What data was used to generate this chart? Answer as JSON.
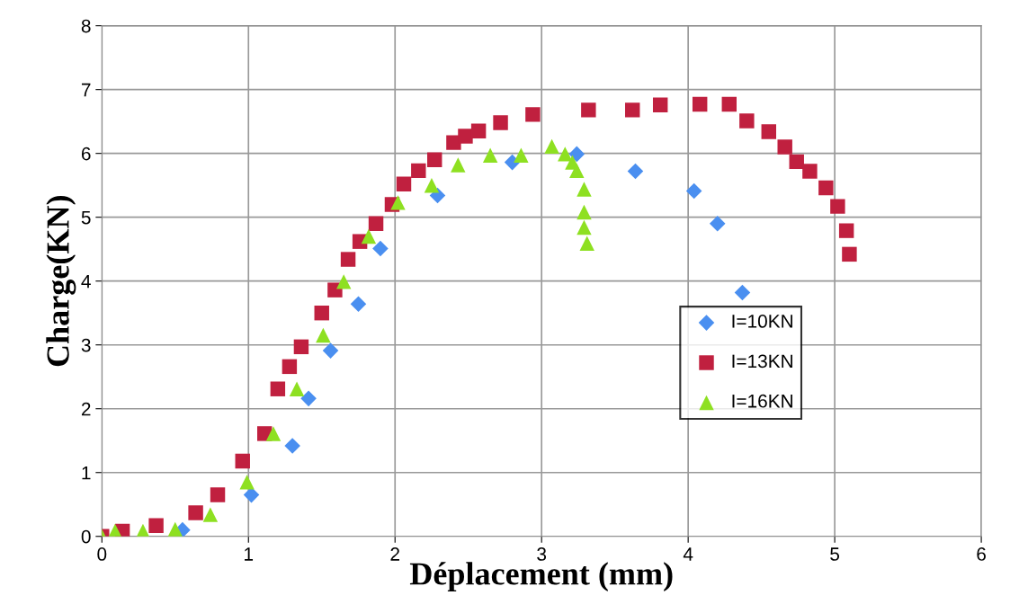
{
  "chart_data": {
    "type": "scatter",
    "xlabel": "Déplacement (mm)",
    "ylabel": "Charge(KN)",
    "xlim": [
      0,
      6
    ],
    "ylim": [
      0,
      8
    ],
    "xticks": [
      0,
      1,
      2,
      3,
      4,
      5,
      6
    ],
    "yticks": [
      0,
      1,
      2,
      3,
      4,
      5,
      6,
      7,
      8
    ],
    "grid": true,
    "legend": "right",
    "series": [
      {
        "name": "I=10KN",
        "color": "#4a8ff0",
        "marker": "diamond",
        "x": [
          0.55,
          1.02,
          1.3,
          1.41,
          1.56,
          1.75,
          1.9,
          2.29,
          2.8,
          3.24,
          3.64,
          4.04,
          4.2,
          4.37
        ],
        "values": [
          0.1,
          0.65,
          1.42,
          2.16,
          2.91,
          3.64,
          4.51,
          5.34,
          5.86,
          5.99,
          5.72,
          5.41,
          4.9,
          3.82
        ]
      },
      {
        "name": "I=13KN",
        "color": "#c0203f",
        "marker": "square",
        "x": [
          0,
          0.14,
          0.37,
          0.64,
          0.79,
          0.96,
          1.11,
          1.2,
          1.28,
          1.36,
          1.5,
          1.59,
          1.68,
          1.76,
          1.87,
          1.98,
          2.06,
          2.16,
          2.27,
          2.4,
          2.48,
          2.57,
          2.72,
          2.94,
          3.32,
          3.62,
          3.81,
          4.08,
          4.28,
          4.4,
          4.55,
          4.66,
          4.74,
          4.83,
          4.94,
          5.02,
          5.08,
          5.1
        ],
        "values": [
          0,
          0.08,
          0.17,
          0.37,
          0.65,
          1.18,
          1.61,
          2.31,
          2.66,
          2.97,
          3.5,
          3.86,
          4.34,
          4.62,
          4.9,
          5.2,
          5.52,
          5.73,
          5.9,
          6.17,
          6.27,
          6.35,
          6.48,
          6.61,
          6.68,
          6.68,
          6.76,
          6.77,
          6.77,
          6.51,
          6.34,
          6.1,
          5.87,
          5.72,
          5.46,
          5.17,
          4.79,
          4.42
        ]
      },
      {
        "name": "I=16KN",
        "color": "#8ee021",
        "marker": "triangle",
        "x": [
          0,
          0.09,
          0.28,
          0.5,
          0.74,
          0.99,
          1.17,
          1.33,
          1.51,
          1.65,
          1.82,
          2.02,
          2.25,
          2.43,
          2.65,
          2.86,
          3.07,
          3.16,
          3.21,
          3.24,
          3.29,
          3.29,
          3.29,
          3.31
        ],
        "values": [
          0,
          0.08,
          0.08,
          0.11,
          0.34,
          0.85,
          1.61,
          2.31,
          3.15,
          3.99,
          4.7,
          5.23,
          5.5,
          5.82,
          5.97,
          5.97,
          6.11,
          5.99,
          5.86,
          5.73,
          5.44,
          5.08,
          4.84,
          4.59
        ]
      }
    ]
  }
}
